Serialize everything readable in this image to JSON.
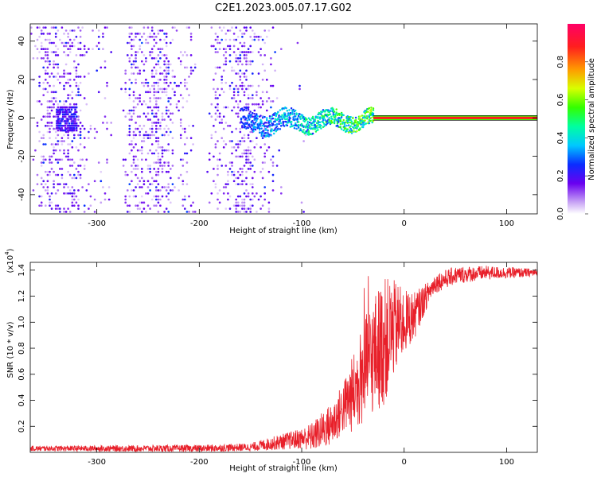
{
  "figure": {
    "title": "C2E1.2023.005.07.17.G02"
  },
  "chart_data": [
    {
      "type": "heatmap",
      "title": "C2E1.2023.005.07.17.G02",
      "xlabel": "Height of straight line (km)",
      "ylabel": "Frequency (Hz)",
      "xlim": [
        -365,
        130
      ],
      "ylim": [
        -50,
        49
      ],
      "xticks": [
        -300,
        -200,
        -100,
        0,
        100
      ],
      "yticks": [
        -40,
        -20,
        0,
        20,
        40
      ],
      "colorbar": {
        "label": "Normalized spectral amplitude",
        "range": [
          0.0,
          1.0
        ],
        "ticks": [
          "0.0",
          "0.2",
          "0.4",
          "0.6",
          "0.8"
        ],
        "tick_values": [
          0.0,
          0.2,
          0.4,
          0.6,
          0.8
        ],
        "colors": [
          "#ffffff",
          "#c9a6f5",
          "#6a00f0",
          "#0a2cff",
          "#00c8ff",
          "#00ffa0",
          "#33ff00",
          "#d8ff00",
          "#ff9a00",
          "#ff1e1e",
          "#ff0066"
        ]
      },
      "features": [
        {
          "name": "noise",
          "x_range": [
            -365,
            -95
          ],
          "freq_range": [
            -50,
            49
          ],
          "intensity": 0.12
        },
        {
          "name": "signal-band",
          "x_range": [
            -160,
            -30
          ],
          "center_freq": 0,
          "half_width": 8,
          "intensity": 0.3
        },
        {
          "name": "carrier",
          "x_range": [
            -30,
            130
          ],
          "center_freq": 0,
          "intensity": 1.0
        }
      ]
    },
    {
      "type": "line",
      "xlabel": "Height of straight line (km)",
      "ylabel": "SNR (10 * v/v)",
      "y_scale_label": "(x10",
      "y_scale_exponent": "4",
      "xlim": [
        -365,
        130
      ],
      "ylim": [
        0.0,
        1.46
      ],
      "xticks": [
        -300,
        -200,
        -100,
        0,
        100
      ],
      "yticks": [
        0.2,
        0.4,
        0.6,
        0.8,
        1.0,
        1.2,
        1.4
      ],
      "series_color": "#e8202a",
      "key_points": [
        {
          "x": -365,
          "y": 0.03
        },
        {
          "x": -200,
          "y": 0.03
        },
        {
          "x": -150,
          "y": 0.04
        },
        {
          "x": -120,
          "y": 0.08
        },
        {
          "x": -90,
          "y": 0.12
        },
        {
          "x": -70,
          "y": 0.22
        },
        {
          "x": -50,
          "y": 0.45
        },
        {
          "x": -40,
          "y": 0.6
        },
        {
          "x": -30,
          "y": 0.75
        },
        {
          "x": -20,
          "y": 0.85
        },
        {
          "x": -10,
          "y": 0.95
        },
        {
          "x": 0,
          "y": 1.0
        },
        {
          "x": 10,
          "y": 1.05
        },
        {
          "x": 20,
          "y": 1.18
        },
        {
          "x": 30,
          "y": 1.3
        },
        {
          "x": 50,
          "y": 1.36
        },
        {
          "x": 80,
          "y": 1.38
        },
        {
          "x": 130,
          "y": 1.38
        }
      ],
      "noise_envelope": [
        {
          "x": -365,
          "amp": 0.02
        },
        {
          "x": -150,
          "amp": 0.03
        },
        {
          "x": -100,
          "amp": 0.08
        },
        {
          "x": -60,
          "amp": 0.2
        },
        {
          "x": -40,
          "amp": 0.4
        },
        {
          "x": -20,
          "amp": 0.5
        },
        {
          "x": 0,
          "amp": 0.25
        },
        {
          "x": 25,
          "amp": 0.08
        },
        {
          "x": 130,
          "amp": 0.03
        }
      ]
    }
  ]
}
